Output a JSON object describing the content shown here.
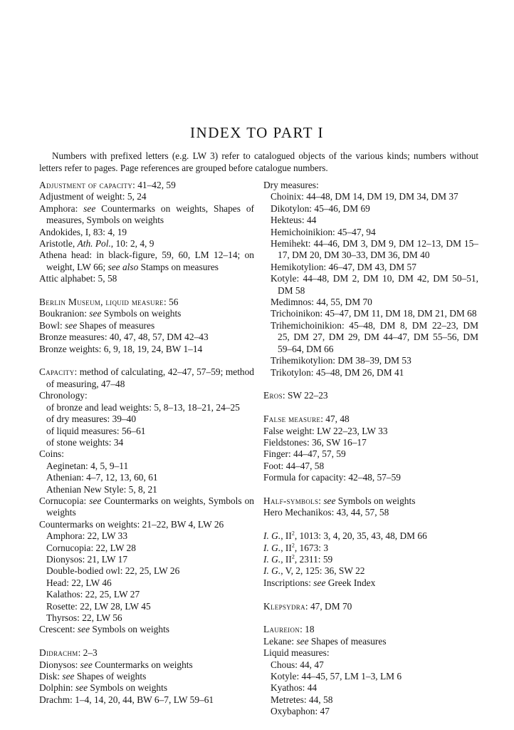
{
  "title": "INDEX TO PART I",
  "intro": "Numbers with prefixed letters (e.g. LW 3) refer to catalogued objects of the various kinds; numbers without letters refer to pages. Page references are grouped before catalogue numbers.",
  "columns": [
    {
      "groups": [
        {
          "entries": [
            {
              "level": 0,
              "segs": [
                {
                  "t": "Adjustment of capacity",
                  "s": "sc"
                },
                {
                  "t": ": 41–42, 59"
                }
              ]
            },
            {
              "level": 0,
              "segs": [
                {
                  "t": "Adjustment of weight: 5, 24"
                }
              ]
            },
            {
              "level": 0,
              "segs": [
                {
                  "t": "Amphora: "
                },
                {
                  "t": "see",
                  "s": "i"
                },
                {
                  "t": " Countermarks on weights, Shapes of measures, Symbols on weights"
                }
              ]
            },
            {
              "level": 0,
              "segs": [
                {
                  "t": "Andokides, I, 83: 4, 19"
                }
              ]
            },
            {
              "level": 0,
              "segs": [
                {
                  "t": "Aristotle, "
                },
                {
                  "t": "Ath. Pol.",
                  "s": "i"
                },
                {
                  "t": ", 10: 2, 4, 9"
                }
              ]
            },
            {
              "level": 0,
              "segs": [
                {
                  "t": "Athena head: in black-figure, 59, 60, LM 12–14; on weight, LW 66; "
                },
                {
                  "t": "see also",
                  "s": "i"
                },
                {
                  "t": " Stamps on measures"
                }
              ]
            },
            {
              "level": 0,
              "segs": [
                {
                  "t": "Attic alphabet: 5, 58"
                }
              ]
            }
          ]
        },
        {
          "entries": [
            {
              "level": 0,
              "segs": [
                {
                  "t": "Berlin Museum, liquid measure",
                  "s": "sc"
                },
                {
                  "t": ": 56"
                }
              ]
            },
            {
              "level": 0,
              "segs": [
                {
                  "t": "Boukranion: "
                },
                {
                  "t": "see",
                  "s": "i"
                },
                {
                  "t": " Symbols on weights"
                }
              ]
            },
            {
              "level": 0,
              "segs": [
                {
                  "t": "Bowl: "
                },
                {
                  "t": "see",
                  "s": "i"
                },
                {
                  "t": " Shapes of measures"
                }
              ]
            },
            {
              "level": 0,
              "segs": [
                {
                  "t": "Bronze measures: 40, 47, 48, 57, DM 42–43"
                }
              ]
            },
            {
              "level": 0,
              "segs": [
                {
                  "t": "Bronze weights: 6, 9, 18, 19, 24, BW 1–14"
                }
              ]
            }
          ]
        },
        {
          "entries": [
            {
              "level": 0,
              "segs": [
                {
                  "t": "Capacity",
                  "s": "sc"
                },
                {
                  "t": ": method of calculating, 42–47, 57–59; method of measuring, 47–48"
                }
              ]
            },
            {
              "level": 0,
              "segs": [
                {
                  "t": "Chronology:"
                }
              ]
            },
            {
              "level": 1,
              "segs": [
                {
                  "t": "of bronze and lead weights: 5, 8–13, 18–21, 24–25"
                }
              ]
            },
            {
              "level": 1,
              "segs": [
                {
                  "t": "of dry measures: 39–40"
                }
              ]
            },
            {
              "level": 1,
              "segs": [
                {
                  "t": "of liquid measures: 56–61"
                }
              ]
            },
            {
              "level": 1,
              "segs": [
                {
                  "t": "of stone weights: 34"
                }
              ]
            },
            {
              "level": 0,
              "segs": [
                {
                  "t": "Coins:"
                }
              ]
            },
            {
              "level": 1,
              "segs": [
                {
                  "t": "Aeginetan: 4, 5, 9–11"
                }
              ]
            },
            {
              "level": 1,
              "segs": [
                {
                  "t": "Athenian: 4–7, 12, 13, 60, 61"
                }
              ]
            },
            {
              "level": 1,
              "segs": [
                {
                  "t": "Athenian New Style: 5, 8, 21"
                }
              ]
            },
            {
              "level": 0,
              "segs": [
                {
                  "t": "Cornucopia: "
                },
                {
                  "t": "see",
                  "s": "i"
                },
                {
                  "t": " Countermarks on weights, Symbols on weights"
                }
              ]
            },
            {
              "level": 0,
              "segs": [
                {
                  "t": "Countermarks on weights: 21–22, BW 4, LW 26"
                }
              ]
            },
            {
              "level": 1,
              "segs": [
                {
                  "t": "Amphora: 22, LW 33"
                }
              ]
            },
            {
              "level": 1,
              "segs": [
                {
                  "t": "Cornucopia: 22, LW 28"
                }
              ]
            },
            {
              "level": 1,
              "segs": [
                {
                  "t": "Dionysos: 21, LW 17"
                }
              ]
            },
            {
              "level": 1,
              "segs": [
                {
                  "t": "Double-bodied owl: 22, 25, LW 26"
                }
              ]
            },
            {
              "level": 1,
              "segs": [
                {
                  "t": "Head: 22, LW 46"
                }
              ]
            },
            {
              "level": 1,
              "segs": [
                {
                  "t": "Kalathos: 22, 25, LW 27"
                }
              ]
            },
            {
              "level": 1,
              "segs": [
                {
                  "t": "Rosette: 22, LW 28, LW 45"
                }
              ]
            },
            {
              "level": 1,
              "segs": [
                {
                  "t": "Thyrsos: 22, LW 56"
                }
              ]
            },
            {
              "level": 0,
              "segs": [
                {
                  "t": "Crescent: "
                },
                {
                  "t": "see",
                  "s": "i"
                },
                {
                  "t": " Symbols on weights"
                }
              ]
            }
          ]
        },
        {
          "entries": [
            {
              "level": 0,
              "segs": [
                {
                  "t": "Didrachm",
                  "s": "sc"
                },
                {
                  "t": ": 2–3"
                }
              ]
            },
            {
              "level": 0,
              "segs": [
                {
                  "t": "Dionysos: "
                },
                {
                  "t": "see",
                  "s": "i"
                },
                {
                  "t": " Countermarks on weights"
                }
              ]
            },
            {
              "level": 0,
              "segs": [
                {
                  "t": "Disk: "
                },
                {
                  "t": "see",
                  "s": "i"
                },
                {
                  "t": " Shapes of weights"
                }
              ]
            },
            {
              "level": 0,
              "segs": [
                {
                  "t": "Dolphin: "
                },
                {
                  "t": "see",
                  "s": "i"
                },
                {
                  "t": " Symbols on weights"
                }
              ]
            },
            {
              "level": 0,
              "segs": [
                {
                  "t": "Drachm: 1–4, 14, 20, 44, BW 6–7, LW 59–61"
                }
              ]
            }
          ]
        }
      ]
    },
    {
      "groups": [
        {
          "entries": [
            {
              "level": 0,
              "segs": [
                {
                  "t": "Dry measures:"
                }
              ]
            },
            {
              "level": 1,
              "segs": [
                {
                  "t": "Choinix: 44–48, DM 14, DM 19, DM 34, DM 37"
                }
              ]
            },
            {
              "level": 1,
              "segs": [
                {
                  "t": "Dikotylon: 45–46, DM 69"
                }
              ]
            },
            {
              "level": 1,
              "segs": [
                {
                  "t": "Hekteus: 44"
                }
              ]
            },
            {
              "level": 1,
              "segs": [
                {
                  "t": "Hemichoinikion: 45–47, 94"
                }
              ]
            },
            {
              "level": 1,
              "segs": [
                {
                  "t": "Hemihekt: 44–46, DM 3, DM 9, DM 12–13, DM 15–17, DM 20, DM 30–33, DM 36, DM 40"
                }
              ]
            },
            {
              "level": 1,
              "segs": [
                {
                  "t": "Hemikotylion: 46–47, DM 43, DM 57"
                }
              ]
            },
            {
              "level": 1,
              "segs": [
                {
                  "t": "Kotyle: 44–48, DM 2, DM 10, DM 42, DM 50–51, DM 58"
                }
              ]
            },
            {
              "level": 1,
              "segs": [
                {
                  "t": "Medimnos: 44, 55, DM 70"
                }
              ]
            },
            {
              "level": 1,
              "segs": [
                {
                  "t": "Trichoinikon: 45–47, DM 11, DM 18, DM 21, DM 68"
                }
              ]
            },
            {
              "level": 1,
              "segs": [
                {
                  "t": "Trihemichoinikion: 45–48, DM 8, DM 22–23, DM 25, DM 27, DM 29, DM 44–47, DM 55–56, DM 59–64, DM 66"
                }
              ]
            },
            {
              "level": 1,
              "segs": [
                {
                  "t": "Trihemikotylion: DM 38–39, DM 53"
                }
              ]
            },
            {
              "level": 1,
              "segs": [
                {
                  "t": "Trikotylon: 45–48, DM 26, DM 41"
                }
              ]
            }
          ]
        },
        {
          "entries": [
            {
              "level": 0,
              "segs": [
                {
                  "t": "Eros",
                  "s": "sc"
                },
                {
                  "t": ": SW 22–23"
                }
              ]
            }
          ]
        },
        {
          "entries": [
            {
              "level": 0,
              "segs": [
                {
                  "t": "False measure",
                  "s": "sc"
                },
                {
                  "t": ": 47, 48"
                }
              ]
            },
            {
              "level": 0,
              "segs": [
                {
                  "t": "False weight: LW 22–23, LW 33"
                }
              ]
            },
            {
              "level": 0,
              "segs": [
                {
                  "t": "Fieldstones: 36, SW 16–17"
                }
              ]
            },
            {
              "level": 0,
              "segs": [
                {
                  "t": "Finger: 44–47, 57, 59"
                }
              ]
            },
            {
              "level": 0,
              "segs": [
                {
                  "t": "Foot: 44–47, 58"
                }
              ]
            },
            {
              "level": 0,
              "segs": [
                {
                  "t": "Formula for capacity: 42–48, 57–59"
                }
              ]
            }
          ]
        },
        {
          "entries": [
            {
              "level": 0,
              "segs": [
                {
                  "t": "Half-symbols",
                  "s": "sc"
                },
                {
                  "t": ": "
                },
                {
                  "t": "see",
                  "s": "i"
                },
                {
                  "t": " Symbols on weights"
                }
              ]
            },
            {
              "level": 0,
              "segs": [
                {
                  "t": "Hero Mechanikos: 43, 44, 57, 58"
                }
              ]
            }
          ]
        },
        {
          "entries": [
            {
              "level": 0,
              "segs": [
                {
                  "t": "I. G.",
                  "s": "i"
                },
                {
                  "t": ", II"
                },
                {
                  "t": "2",
                  "s": "sup"
                },
                {
                  "t": ", 1013: 3, 4, 20, 35, 43, 48, DM 66"
                }
              ]
            },
            {
              "level": 0,
              "segs": [
                {
                  "t": "I. G.",
                  "s": "i"
                },
                {
                  "t": ", II"
                },
                {
                  "t": "2",
                  "s": "sup"
                },
                {
                  "t": ", 1673: 3"
                }
              ]
            },
            {
              "level": 0,
              "segs": [
                {
                  "t": "I. G.",
                  "s": "i"
                },
                {
                  "t": ", II"
                },
                {
                  "t": "2",
                  "s": "sup"
                },
                {
                  "t": ", 2311: 59"
                }
              ]
            },
            {
              "level": 0,
              "segs": [
                {
                  "t": "I. G.",
                  "s": "i"
                },
                {
                  "t": ", V, 2, 125: 36, SW 22"
                }
              ]
            },
            {
              "level": 0,
              "segs": [
                {
                  "t": "Inscriptions: "
                },
                {
                  "t": "see",
                  "s": "i"
                },
                {
                  "t": " Greek Index"
                }
              ]
            }
          ]
        },
        {
          "entries": [
            {
              "level": 0,
              "segs": [
                {
                  "t": "Klepsydra",
                  "s": "sc"
                },
                {
                  "t": ": 47, DM 70"
                }
              ]
            }
          ]
        },
        {
          "entries": [
            {
              "level": 0,
              "segs": [
                {
                  "t": "Laureion",
                  "s": "sc"
                },
                {
                  "t": ": 18"
                }
              ]
            },
            {
              "level": 0,
              "segs": [
                {
                  "t": "Lekane: "
                },
                {
                  "t": "see",
                  "s": "i"
                },
                {
                  "t": " Shapes of measures"
                }
              ]
            },
            {
              "level": 0,
              "segs": [
                {
                  "t": "Liquid measures:"
                }
              ]
            },
            {
              "level": 1,
              "segs": [
                {
                  "t": "Chous: 44, 47"
                }
              ]
            },
            {
              "level": 1,
              "segs": [
                {
                  "t": "Kotyle: 44–45, 57, LM 1–3, LM 6"
                }
              ]
            },
            {
              "level": 1,
              "segs": [
                {
                  "t": "Kyathos: 44"
                }
              ]
            },
            {
              "level": 1,
              "segs": [
                {
                  "t": "Metretes: 44, 58"
                }
              ]
            },
            {
              "level": 1,
              "segs": [
                {
                  "t": "Oxybaphon: 47"
                }
              ]
            }
          ]
        }
      ]
    }
  ]
}
